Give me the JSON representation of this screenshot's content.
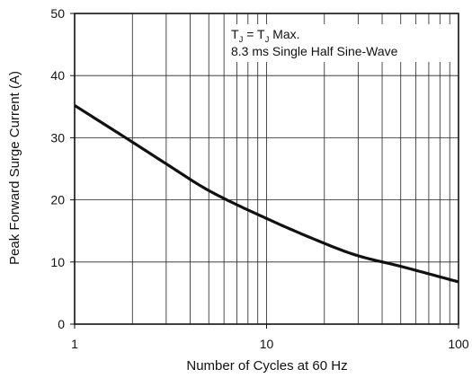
{
  "chart_data": {
    "type": "line",
    "x_scale": "log",
    "xlim": [
      1,
      100
    ],
    "ylim": [
      0,
      50
    ],
    "xlabel": "Number of Cycles at 60 Hz",
    "ylabel": "Peak Forward Surge Current (A)",
    "x_ticks": [
      "1",
      "10",
      "100"
    ],
    "y_ticks": [
      "0",
      "10",
      "20",
      "30",
      "40",
      "50"
    ],
    "grid": true,
    "annotation": {
      "line1_parts": [
        "T",
        "J",
        " = T",
        "J",
        " Max."
      ],
      "line2": "8.3 ms Single Half Sine-Wave",
      "position": "top-right"
    },
    "series": [
      {
        "x": [
          1,
          2,
          3,
          5,
          10,
          20,
          30,
          50,
          100
        ],
        "y": [
          35.2,
          29.3,
          25.8,
          21.5,
          17,
          13,
          11,
          9.3,
          6.8
        ]
      }
    ],
    "colors": {
      "line": "#111111",
      "grid": "#222222",
      "frame": "#111111"
    }
  }
}
